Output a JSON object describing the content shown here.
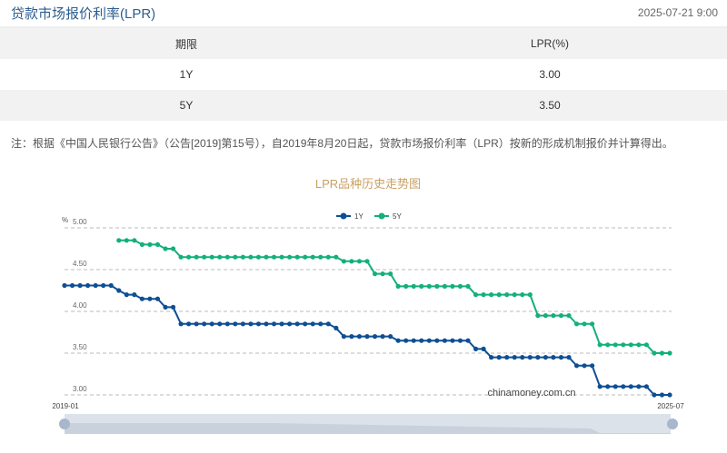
{
  "header": {
    "title": "贷款市场报价利率(LPR)",
    "timestamp": "2025-07-21 9:00"
  },
  "table": {
    "columns": [
      "期限",
      "LPR(%)"
    ],
    "rows": [
      [
        "1Y",
        "3.00"
      ],
      [
        "5Y",
        "3.50"
      ]
    ]
  },
  "note": "注：根据《中国人民银行公告》（公告[2019]第15号），自2019年8月20日起，贷款市场报价利率（LPR）按新的形成机制报价并计算得出。",
  "chart_data": {
    "type": "line",
    "title": "LPR品种历史走势图",
    "ylabel": "%",
    "ylim": [
      3.0,
      5.0
    ],
    "yticks": [
      "5.00",
      "4.50",
      "4.00",
      "3.50",
      "3.00"
    ],
    "xtick_labels": [
      "2019-01",
      "2025-07"
    ],
    "grid": true,
    "legend": "top-center",
    "watermark": "chinamoney.com.cn",
    "x": [
      "2019-01",
      "2019-02",
      "2019-03",
      "2019-04",
      "2019-05",
      "2019-06",
      "2019-07",
      "2019-08",
      "2019-09",
      "2019-10",
      "2019-11",
      "2019-12",
      "2020-01",
      "2020-02",
      "2020-03",
      "2020-04",
      "2020-05",
      "2020-06",
      "2020-07",
      "2020-08",
      "2020-09",
      "2020-10",
      "2020-11",
      "2020-12",
      "2021-01",
      "2021-02",
      "2021-03",
      "2021-04",
      "2021-05",
      "2021-06",
      "2021-07",
      "2021-08",
      "2021-09",
      "2021-10",
      "2021-11",
      "2021-12",
      "2022-01",
      "2022-02",
      "2022-03",
      "2022-04",
      "2022-05",
      "2022-06",
      "2022-07",
      "2022-08",
      "2022-09",
      "2022-10",
      "2022-11",
      "2022-12",
      "2023-01",
      "2023-02",
      "2023-03",
      "2023-04",
      "2023-05",
      "2023-06",
      "2023-07",
      "2023-08",
      "2023-09",
      "2023-10",
      "2023-11",
      "2023-12",
      "2024-01",
      "2024-02",
      "2024-03",
      "2024-04",
      "2024-05",
      "2024-06",
      "2024-07",
      "2024-08",
      "2024-09",
      "2024-10",
      "2024-11",
      "2024-12",
      "2025-01",
      "2025-02",
      "2025-03",
      "2025-04",
      "2025-05",
      "2025-06",
      "2025-07"
    ],
    "series": [
      {
        "name": "1Y",
        "color": "#0d4f94",
        "values": [
          4.31,
          4.31,
          4.31,
          4.31,
          4.31,
          4.31,
          4.31,
          4.25,
          4.2,
          4.2,
          4.15,
          4.15,
          4.15,
          4.05,
          4.05,
          3.85,
          3.85,
          3.85,
          3.85,
          3.85,
          3.85,
          3.85,
          3.85,
          3.85,
          3.85,
          3.85,
          3.85,
          3.85,
          3.85,
          3.85,
          3.85,
          3.85,
          3.85,
          3.85,
          3.85,
          3.8,
          3.7,
          3.7,
          3.7,
          3.7,
          3.7,
          3.7,
          3.7,
          3.65,
          3.65,
          3.65,
          3.65,
          3.65,
          3.65,
          3.65,
          3.65,
          3.65,
          3.65,
          3.55,
          3.55,
          3.45,
          3.45,
          3.45,
          3.45,
          3.45,
          3.45,
          3.45,
          3.45,
          3.45,
          3.45,
          3.45,
          3.35,
          3.35,
          3.35,
          3.1,
          3.1,
          3.1,
          3.1,
          3.1,
          3.1,
          3.1,
          3.0,
          3.0,
          3.0
        ]
      },
      {
        "name": "5Y",
        "color": "#13b07a",
        "values": [
          null,
          null,
          null,
          null,
          null,
          null,
          null,
          4.85,
          4.85,
          4.85,
          4.8,
          4.8,
          4.8,
          4.75,
          4.75,
          4.65,
          4.65,
          4.65,
          4.65,
          4.65,
          4.65,
          4.65,
          4.65,
          4.65,
          4.65,
          4.65,
          4.65,
          4.65,
          4.65,
          4.65,
          4.65,
          4.65,
          4.65,
          4.65,
          4.65,
          4.65,
          4.6,
          4.6,
          4.6,
          4.6,
          4.45,
          4.45,
          4.45,
          4.3,
          4.3,
          4.3,
          4.3,
          4.3,
          4.3,
          4.3,
          4.3,
          4.3,
          4.3,
          4.2,
          4.2,
          4.2,
          4.2,
          4.2,
          4.2,
          4.2,
          4.2,
          3.95,
          3.95,
          3.95,
          3.95,
          3.95,
          3.85,
          3.85,
          3.85,
          3.6,
          3.6,
          3.6,
          3.6,
          3.6,
          3.6,
          3.6,
          3.5,
          3.5,
          3.5
        ]
      }
    ]
  },
  "colors": {
    "title": "#2d5d8f",
    "chart_title": "#c9a063",
    "zebra": "#f2f2f2"
  }
}
